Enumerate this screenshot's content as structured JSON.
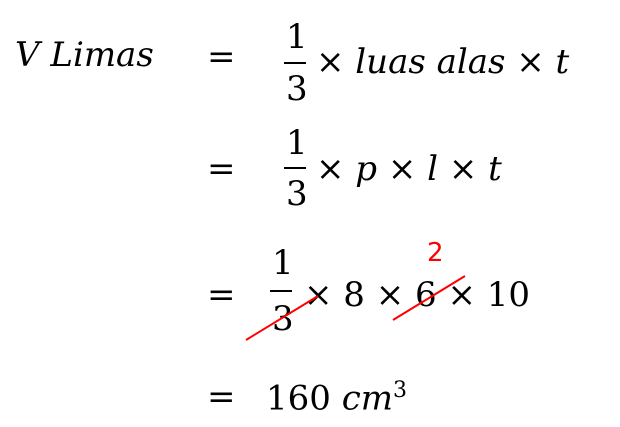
{
  "equation": {
    "lhs": "V Limas",
    "equals": "=",
    "line1": {
      "numerator": "1",
      "denominator": "3",
      "rest": "× luas alas × t"
    },
    "line2": {
      "numerator": "1",
      "denominator": "3",
      "rest": "× p × l × t"
    },
    "line3": {
      "numerator": "1",
      "denominator": "3",
      "rest": "× 8 × 6 × 10",
      "correction": "2"
    },
    "line4": {
      "value": "160",
      "unit": "cm",
      "exponent": "3"
    }
  },
  "colors": {
    "annotation": "#ff0000"
  }
}
